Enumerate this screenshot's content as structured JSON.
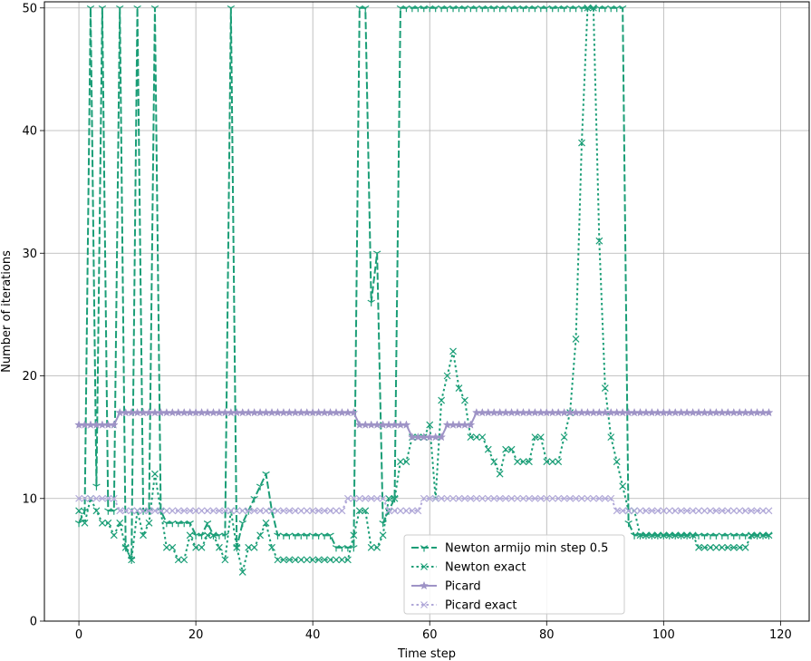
{
  "chart_data": {
    "type": "line",
    "title": "",
    "xlabel": "Time step",
    "ylabel": "Number of iterations",
    "xlim": [
      -5.9,
      124.9
    ],
    "ylim": [
      0,
      50.5
    ],
    "xticks": [
      0,
      20,
      40,
      60,
      80,
      100,
      120
    ],
    "yticks": [
      0,
      10,
      20,
      30,
      40,
      50
    ],
    "grid": true,
    "legend_position": "lower-center",
    "colors": {
      "newton": "#1b9e77",
      "picard": "#9e93c6",
      "picard_exact": "#b0a8d8",
      "grid": "#b0b0b0"
    },
    "series": [
      {
        "name": "Newton armijo min step 0.5",
        "line": "dashed",
        "marker": "tri_down",
        "color": "#1b9e77",
        "x": [
          0,
          1,
          2,
          3,
          4,
          5,
          6,
          7,
          8,
          9,
          10,
          11,
          12,
          13,
          14,
          15,
          16,
          17,
          18,
          19,
          20,
          21,
          22,
          23,
          24,
          25,
          26,
          27,
          28,
          29,
          30,
          31,
          32,
          33,
          34,
          35,
          36,
          37,
          38,
          39,
          40,
          41,
          42,
          43,
          44,
          45,
          46,
          47,
          48,
          49,
          50,
          51,
          52,
          53,
          54,
          55,
          56,
          57,
          58,
          59,
          60,
          61,
          62,
          63,
          64,
          65,
          66,
          67,
          68,
          69,
          70,
          71,
          72,
          73,
          74,
          75,
          76,
          77,
          78,
          79,
          80,
          81,
          82,
          83,
          84,
          85,
          86,
          87,
          88,
          89,
          90,
          91,
          92,
          93,
          94,
          95,
          96,
          97,
          98,
          99,
          100,
          101,
          102,
          103,
          104,
          105,
          106,
          107,
          108,
          109,
          110,
          111,
          112,
          113,
          114,
          115,
          116,
          117,
          118
        ],
        "y": [
          8,
          9,
          50,
          11,
          50,
          9,
          9,
          50,
          6,
          5,
          50,
          9,
          9,
          50,
          9,
          8,
          8,
          8,
          8,
          8,
          7,
          7,
          8,
          7,
          7,
          7,
          50,
          6,
          8,
          9,
          10,
          11,
          12,
          9,
          7,
          7,
          7,
          7,
          7,
          7,
          7,
          7,
          7,
          7,
          6,
          6,
          6,
          6,
          50,
          50,
          26,
          30,
          8,
          9,
          10,
          50,
          50,
          50,
          50,
          50,
          50,
          50,
          50,
          50,
          50,
          50,
          50,
          50,
          50,
          50,
          50,
          50,
          50,
          50,
          50,
          50,
          50,
          50,
          50,
          50,
          50,
          50,
          50,
          50,
          50,
          50,
          50,
          50,
          50,
          50,
          50,
          50,
          50,
          50,
          8,
          7,
          7,
          7,
          7,
          7,
          7,
          7,
          7,
          7,
          7,
          7,
          7,
          7,
          7,
          7,
          7,
          7,
          7,
          7,
          7,
          7,
          7,
          7,
          7
        ]
      },
      {
        "name": "Newton exact",
        "line": "dotted",
        "marker": "x",
        "color": "#1b9e77",
        "x": [
          0,
          1,
          2,
          3,
          4,
          5,
          6,
          7,
          8,
          9,
          10,
          11,
          12,
          13,
          14,
          15,
          16,
          17,
          18,
          19,
          20,
          21,
          22,
          23,
          24,
          25,
          26,
          27,
          28,
          29,
          30,
          31,
          32,
          33,
          34,
          35,
          36,
          37,
          38,
          39,
          40,
          41,
          42,
          43,
          44,
          45,
          46,
          47,
          48,
          49,
          50,
          51,
          52,
          53,
          54,
          55,
          56,
          57,
          58,
          59,
          60,
          61,
          62,
          63,
          64,
          65,
          66,
          67,
          68,
          69,
          70,
          71,
          72,
          73,
          74,
          75,
          76,
          77,
          78,
          79,
          80,
          81,
          82,
          83,
          84,
          85,
          86,
          87,
          88,
          89,
          90,
          91,
          92,
          93,
          94,
          95,
          96,
          97,
          98,
          99,
          100,
          101,
          102,
          103,
          104,
          105,
          106,
          107,
          108,
          109,
          110,
          111,
          112,
          113,
          114,
          115,
          116,
          117,
          118
        ],
        "y": [
          9,
          8,
          10,
          9,
          8,
          8,
          7,
          8,
          6,
          5,
          9,
          7,
          8,
          12,
          9,
          6,
          6,
          5,
          5,
          7,
          6,
          6,
          7,
          7,
          6,
          5,
          9,
          6,
          4,
          6,
          6,
          7,
          8,
          6,
          5,
          5,
          5,
          5,
          5,
          5,
          5,
          5,
          5,
          5,
          5,
          5,
          5,
          7,
          9,
          9,
          6,
          6,
          7,
          10,
          10,
          13,
          13,
          15,
          15,
          15,
          16,
          10,
          18,
          20,
          22,
          19,
          18,
          15,
          15,
          15,
          14,
          13,
          12,
          14,
          14,
          13,
          13,
          13,
          15,
          15,
          13,
          13,
          13,
          15,
          17,
          23,
          39,
          50,
          50,
          31,
          19,
          15,
          13,
          11,
          9,
          9,
          7,
          7,
          7,
          7,
          7,
          7,
          7,
          7,
          7,
          7,
          6,
          6,
          6,
          6,
          6,
          6,
          6,
          6,
          6,
          7,
          7,
          7,
          7
        ]
      },
      {
        "name": "Picard",
        "line": "solid",
        "marker": "star",
        "color": "#9e93c6",
        "x": [
          0,
          1,
          2,
          3,
          4,
          5,
          6,
          7,
          8,
          9,
          10,
          11,
          12,
          13,
          14,
          15,
          16,
          17,
          18,
          19,
          20,
          21,
          22,
          23,
          24,
          25,
          26,
          27,
          28,
          29,
          30,
          31,
          32,
          33,
          34,
          35,
          36,
          37,
          38,
          39,
          40,
          41,
          42,
          43,
          44,
          45,
          46,
          47,
          48,
          49,
          50,
          51,
          52,
          53,
          54,
          55,
          56,
          57,
          58,
          59,
          60,
          61,
          62,
          63,
          64,
          65,
          66,
          67,
          68,
          69,
          70,
          71,
          72,
          73,
          74,
          75,
          76,
          77,
          78,
          79,
          80,
          81,
          82,
          83,
          84,
          85,
          86,
          87,
          88,
          89,
          90,
          91,
          92,
          93,
          94,
          95,
          96,
          97,
          98,
          99,
          100,
          101,
          102,
          103,
          104,
          105,
          106,
          107,
          108,
          109,
          110,
          111,
          112,
          113,
          114,
          115,
          116,
          117,
          118
        ],
        "y": [
          16,
          16,
          16,
          16,
          16,
          16,
          16,
          17,
          17,
          17,
          17,
          17,
          17,
          17,
          17,
          17,
          17,
          17,
          17,
          17,
          17,
          17,
          17,
          17,
          17,
          17,
          17,
          17,
          17,
          17,
          17,
          17,
          17,
          17,
          17,
          17,
          17,
          17,
          17,
          17,
          17,
          17,
          17,
          17,
          17,
          17,
          17,
          17,
          16,
          16,
          16,
          16,
          16,
          16,
          16,
          16,
          16,
          15,
          15,
          15,
          15,
          15,
          15,
          16,
          16,
          16,
          16,
          16,
          17,
          17,
          17,
          17,
          17,
          17,
          17,
          17,
          17,
          17,
          17,
          17,
          17,
          17,
          17,
          17,
          17,
          17,
          17,
          17,
          17,
          17,
          17,
          17,
          17,
          17,
          17,
          17,
          17,
          17,
          17,
          17,
          17,
          17,
          17,
          17,
          17,
          17,
          17,
          17,
          17,
          17,
          17,
          17,
          17,
          17,
          17,
          17,
          17,
          17,
          17
        ]
      },
      {
        "name": "Picard exact",
        "line": "dotted",
        "marker": "x",
        "color": "#b0a8d8",
        "x": [
          0,
          1,
          2,
          3,
          4,
          5,
          6,
          7,
          8,
          9,
          10,
          11,
          12,
          13,
          14,
          15,
          16,
          17,
          18,
          19,
          20,
          21,
          22,
          23,
          24,
          25,
          26,
          27,
          28,
          29,
          30,
          31,
          32,
          33,
          34,
          35,
          36,
          37,
          38,
          39,
          40,
          41,
          42,
          43,
          44,
          45,
          46,
          47,
          48,
          49,
          50,
          51,
          52,
          53,
          54,
          55,
          56,
          57,
          58,
          59,
          60,
          61,
          62,
          63,
          64,
          65,
          66,
          67,
          68,
          69,
          70,
          71,
          72,
          73,
          74,
          75,
          76,
          77,
          78,
          79,
          80,
          81,
          82,
          83,
          84,
          85,
          86,
          87,
          88,
          89,
          90,
          91,
          92,
          93,
          94,
          95,
          96,
          97,
          98,
          99,
          100,
          101,
          102,
          103,
          104,
          105,
          106,
          107,
          108,
          109,
          110,
          111,
          112,
          113,
          114,
          115,
          116,
          117,
          118
        ],
        "y": [
          10,
          10,
          10,
          10,
          10,
          10,
          10,
          9,
          9,
          9,
          9,
          9,
          9,
          9,
          9,
          9,
          9,
          9,
          9,
          9,
          9,
          9,
          9,
          9,
          9,
          9,
          9,
          9,
          9,
          9,
          9,
          9,
          9,
          9,
          9,
          9,
          9,
          9,
          9,
          9,
          9,
          9,
          9,
          9,
          9,
          9,
          10,
          10,
          10,
          10,
          10,
          10,
          10,
          9,
          9,
          9,
          9,
          9,
          9,
          10,
          10,
          10,
          10,
          10,
          10,
          10,
          10,
          10,
          10,
          10,
          10,
          10,
          10,
          10,
          10,
          10,
          10,
          10,
          10,
          10,
          10,
          10,
          10,
          10,
          10,
          10,
          10,
          10,
          10,
          10,
          10,
          10,
          9,
          9,
          9,
          9,
          9,
          9,
          9,
          9,
          9,
          9,
          9,
          9,
          9,
          9,
          9,
          9,
          9,
          9,
          9,
          9,
          9,
          9,
          9,
          9,
          9,
          9,
          9
        ]
      }
    ]
  }
}
